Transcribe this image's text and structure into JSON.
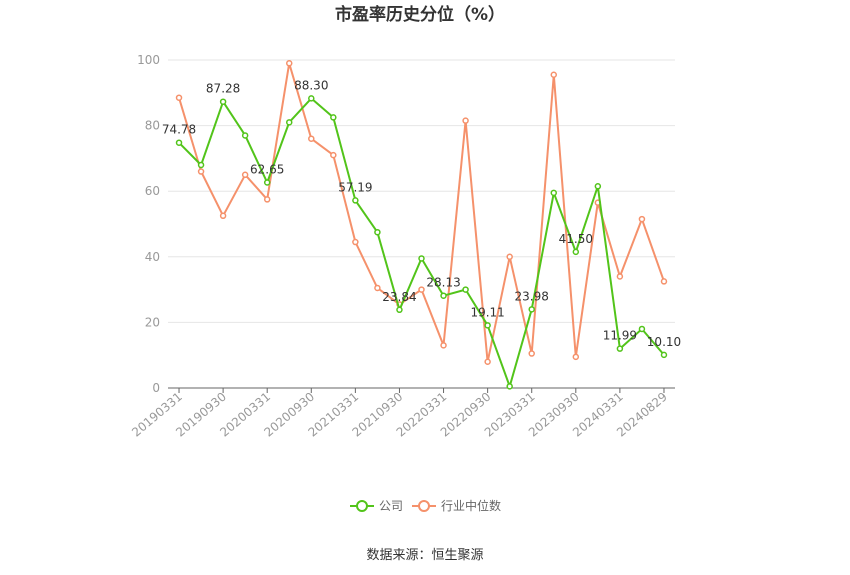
{
  "chart_data": {
    "type": "line",
    "title": "市盈率历史分位（%）",
    "ylim": [
      0,
      100
    ],
    "yticks": [
      0,
      20,
      40,
      60,
      80,
      100
    ],
    "xtick_labels": [
      "20190331",
      "20190930",
      "20200331",
      "20200930",
      "20210331",
      "20210930",
      "20220331",
      "20220930",
      "20230331",
      "20230930",
      "20240331",
      "20240829"
    ],
    "x": [
      "20190331",
      "20190630",
      "20190930",
      "20191231",
      "20200331",
      "20200630",
      "20200930",
      "20201231",
      "20210331",
      "20210630",
      "20210930",
      "20211231",
      "20220331",
      "20220630",
      "20220930",
      "20221231",
      "20230331",
      "20230630",
      "20230930",
      "20231231",
      "20240331",
      "20240630",
      "20240829"
    ],
    "series": [
      {
        "name": "公司",
        "color": "#52c41a",
        "values": [
          74.78,
          68.0,
          87.28,
          77.0,
          62.65,
          81.0,
          88.3,
          82.5,
          57.19,
          47.5,
          23.84,
          39.5,
          28.13,
          30.0,
          19.11,
          0.5,
          23.98,
          59.5,
          41.5,
          61.5,
          11.99,
          18.0,
          10.1
        ],
        "labels": [
          "74.78",
          "",
          "87.28",
          "",
          "62.65",
          "",
          "88.30",
          "",
          "57.19",
          "",
          "23.84",
          "",
          "28.13",
          "",
          "19.11",
          "",
          "23.98",
          "",
          "41.50",
          "",
          "11.99",
          "",
          "10.10"
        ]
      },
      {
        "name": "行业中位数",
        "color": "#f5916b",
        "values": [
          88.5,
          66.0,
          52.5,
          65.0,
          57.5,
          99.0,
          76.0,
          71.0,
          44.5,
          30.5,
          25.5,
          30.0,
          13.0,
          81.5,
          8.0,
          40.0,
          10.5,
          95.5,
          9.5,
          56.5,
          34.0,
          51.5,
          32.5
        ]
      }
    ],
    "legend_position": "bottom",
    "grid": true,
    "source": "数据来源：恒生聚源"
  }
}
